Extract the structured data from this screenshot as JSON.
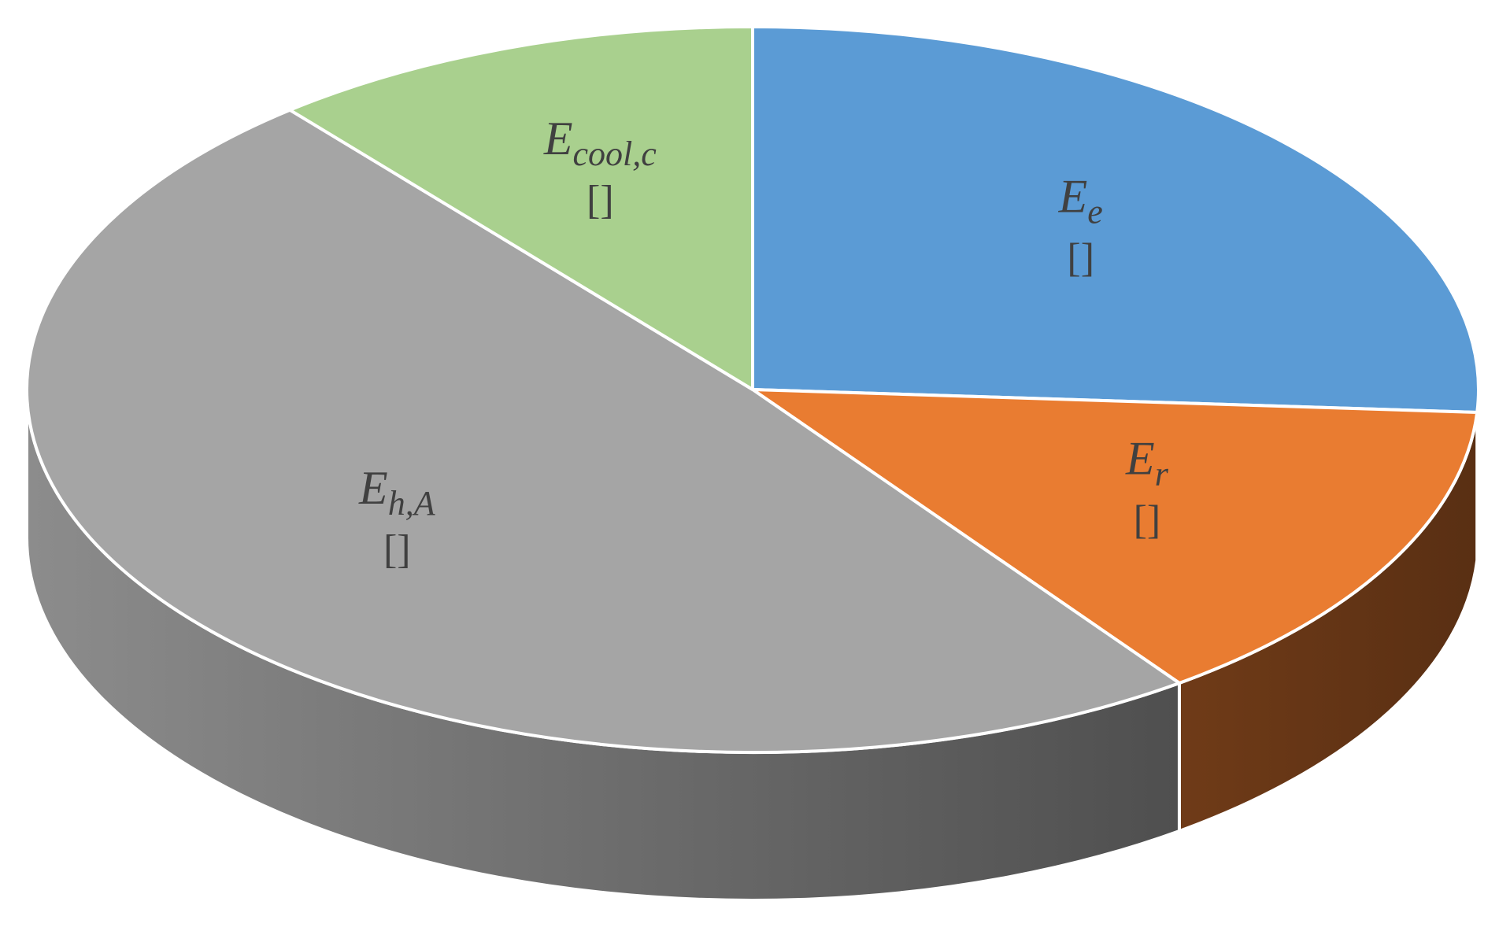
{
  "chart_data": {
    "type": "pie",
    "three_d": true,
    "categories": [
      {
        "symbol": "E",
        "subscript": "e"
      },
      {
        "symbol": "E",
        "subscript": "r"
      },
      {
        "symbol": "E",
        "subscript": "h,A"
      },
      {
        "symbol": "E",
        "subscript": "cool,c"
      }
    ],
    "values": [
      26,
      14,
      49,
      11
    ],
    "value_labels": [
      "[]",
      "[]",
      "[]",
      "[]"
    ],
    "colors": [
      "#5b9bd5",
      "#e97c31",
      "#a5a5a5",
      "#a9d08e"
    ]
  }
}
